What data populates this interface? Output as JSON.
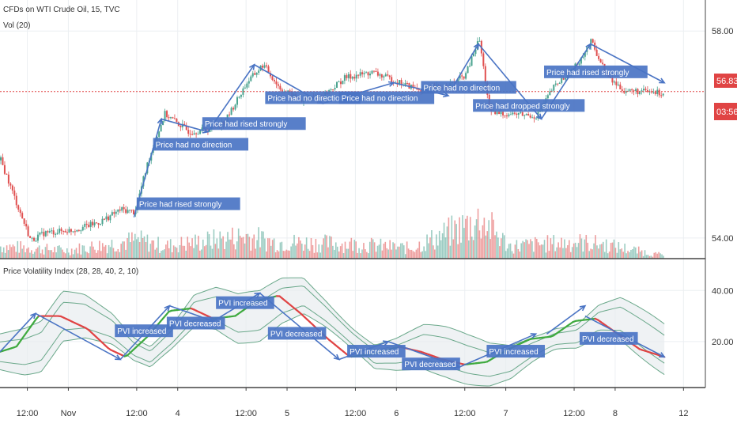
{
  "header": {
    "symbol_line": "CFDs on WTI Crude Oil, 15, TVC",
    "volume_label": "Vol (20)",
    "indicator_label": "Price Volatility Index (28, 28, 40, 2, 10)"
  },
  "price_tags": {
    "last_price": "56.83",
    "countdown": "03:56",
    "last_price_value": 56.83
  },
  "colors": {
    "up": "#4aa38f",
    "down": "#e05050",
    "note_bg": "#4a74c4",
    "arrow": "#4a74c4",
    "band": "#6aa88a",
    "pvi_up": "#3faa3f",
    "pvi_down": "#e04444",
    "price_line": "#e04444"
  },
  "chart_data": [
    {
      "type": "line",
      "panel": "price",
      "y_ticks": [
        {
          "value": 58.0,
          "label": "58.00"
        },
        {
          "value": 54.0,
          "label": "54.00"
        }
      ],
      "ylim": [
        53.6,
        58.6
      ],
      "x_ticks": [
        "12:00",
        "Nov",
        "12:00",
        "4",
        "12:00",
        "5",
        "12:00",
        "6",
        "12:00",
        "7",
        "12:00",
        "8",
        "12"
      ],
      "x_positions": [
        0.5,
        1.25,
        2.5,
        3.25,
        4.5,
        5.25,
        6.5,
        7.25,
        8.5,
        9.25,
        10.5,
        11.25,
        12.5
      ],
      "xlim": [
        0,
        12.9
      ],
      "x_end": 12.15,
      "waypoints": [
        [
          0,
          55.5
        ],
        [
          0.35,
          54.5
        ],
        [
          0.55,
          53.95
        ],
        [
          0.8,
          54.1
        ],
        [
          1.3,
          54.15
        ],
        [
          1.8,
          54.3
        ],
        [
          2.2,
          54.55
        ],
        [
          2.45,
          54.5
        ],
        [
          2.7,
          55.5
        ],
        [
          3.0,
          56.4
        ],
        [
          3.45,
          56.05
        ],
        [
          3.8,
          56.1
        ],
        [
          4.1,
          56.25
        ],
        [
          4.5,
          57.0
        ],
        [
          4.8,
          57.35
        ],
        [
          5.1,
          56.9
        ],
        [
          5.5,
          56.65
        ],
        [
          5.9,
          56.75
        ],
        [
          6.3,
          57.1
        ],
        [
          6.8,
          57.2
        ],
        [
          7.3,
          57.0
        ],
        [
          7.7,
          56.85
        ],
        [
          8.2,
          56.95
        ],
        [
          8.5,
          57.15
        ],
        [
          8.75,
          57.85
        ],
        [
          8.95,
          56.4
        ],
        [
          9.4,
          56.4
        ],
        [
          9.8,
          56.35
        ],
        [
          10.1,
          56.9
        ],
        [
          10.5,
          57.3
        ],
        [
          10.8,
          57.8
        ],
        [
          11.1,
          57.1
        ],
        [
          11.4,
          56.85
        ],
        [
          12.15,
          56.8
        ]
      ],
      "annotations": [
        {
          "text": "Price had rised strongly",
          "x": 2.5,
          "y": 54.6
        },
        {
          "text": "Price had no direction",
          "x": 2.8,
          "y": 55.75
        },
        {
          "text": "Price had rised strongly",
          "x": 3.7,
          "y": 56.15
        },
        {
          "text": "Price had no direction",
          "x": 4.85,
          "y": 56.65
        },
        {
          "text": "Price had no direction",
          "x": 6.2,
          "y": 56.65
        },
        {
          "text": "Price had no direction",
          "x": 7.7,
          "y": 56.85
        },
        {
          "text": "Price had dropped strongly",
          "x": 8.65,
          "y": 56.5
        },
        {
          "text": "Price had rised strongly",
          "x": 9.95,
          "y": 57.15
        }
      ],
      "arrows": [
        [
          [
            2.45,
            54.4
          ],
          [
            2.95,
            56.3
          ]
        ],
        [
          [
            2.95,
            56.3
          ],
          [
            3.8,
            56.05
          ]
        ],
        [
          [
            3.8,
            56.05
          ],
          [
            4.65,
            57.35
          ]
        ],
        [
          [
            4.65,
            57.35
          ],
          [
            5.9,
            56.6
          ]
        ],
        [
          [
            5.9,
            56.6
          ],
          [
            7.2,
            57.0
          ]
        ],
        [
          [
            7.2,
            57.0
          ],
          [
            8.2,
            56.75
          ]
        ],
        [
          [
            8.3,
            56.95
          ],
          [
            8.75,
            57.75
          ]
        ],
        [
          [
            8.75,
            57.75
          ],
          [
            9.9,
            56.3
          ]
        ],
        [
          [
            9.9,
            56.3
          ],
          [
            10.8,
            57.75
          ]
        ],
        [
          [
            10.8,
            57.75
          ],
          [
            12.15,
            57.0
          ]
        ]
      ]
    },
    {
      "type": "bar",
      "panel": "volume",
      "ylim": [
        0,
        100
      ],
      "peaks": [
        [
          0,
          30
        ],
        [
          1.2,
          20
        ],
        [
          2.5,
          45
        ],
        [
          3.0,
          30
        ],
        [
          4.5,
          55
        ],
        [
          5.0,
          40
        ],
        [
          6.5,
          35
        ],
        [
          7.5,
          25
        ],
        [
          8.8,
          95
        ],
        [
          9.3,
          30
        ],
        [
          10.5,
          40
        ],
        [
          11.0,
          35
        ],
        [
          12.0,
          10
        ]
      ]
    },
    {
      "type": "line",
      "panel": "pvi",
      "y_ticks": [
        {
          "value": 40.0,
          "label": "40.00"
        },
        {
          "value": 20.0,
          "label": "20.00"
        }
      ],
      "ylim": [
        2,
        50
      ],
      "pvi_waypoints": [
        [
          0,
          16
        ],
        [
          0.3,
          18
        ],
        [
          0.7,
          30
        ],
        [
          1.1,
          30
        ],
        [
          1.6,
          25
        ],
        [
          2.0,
          17
        ],
        [
          2.3,
          14
        ],
        [
          2.7,
          22
        ],
        [
          3.1,
          32
        ],
        [
          3.5,
          33
        ],
        [
          3.9,
          29
        ],
        [
          4.3,
          30
        ],
        [
          4.7,
          36
        ],
        [
          5.1,
          38
        ],
        [
          5.5,
          31
        ],
        [
          6.0,
          21
        ],
        [
          6.4,
          14
        ],
        [
          6.8,
          15
        ],
        [
          7.3,
          18
        ],
        [
          7.7,
          16
        ],
        [
          8.1,
          13
        ],
        [
          8.5,
          11
        ],
        [
          8.9,
          12
        ],
        [
          9.3,
          17
        ],
        [
          9.7,
          21
        ],
        [
          10.1,
          22
        ],
        [
          10.5,
          28
        ],
        [
          10.9,
          29
        ],
        [
          11.3,
          23
        ],
        [
          11.7,
          17
        ],
        [
          12.15,
          14
        ]
      ],
      "annotations": [
        {
          "text": "PVI increased",
          "x": 2.1,
          "y": 23
        },
        {
          "text": "PVI decreased",
          "x": 3.05,
          "y": 26
        },
        {
          "text": "PVI increased",
          "x": 3.95,
          "y": 34
        },
        {
          "text": "PVI decreased",
          "x": 4.9,
          "y": 22
        },
        {
          "text": "PVI increased",
          "x": 6.35,
          "y": 15
        },
        {
          "text": "PVI decreased",
          "x": 7.35,
          "y": 10
        },
        {
          "text": "PVI increased",
          "x": 8.9,
          "y": 15
        },
        {
          "text": "PVI decreased",
          "x": 10.6,
          "y": 20
        }
      ],
      "arrows": [
        [
          [
            0,
            16
          ],
          [
            0.65,
            31
          ]
        ],
        [
          [
            0.65,
            31
          ],
          [
            2.2,
            13
          ]
        ],
        [
          [
            2.2,
            13
          ],
          [
            3.1,
            34
          ]
        ],
        [
          [
            3.1,
            34
          ],
          [
            3.9,
            28
          ]
        ],
        [
          [
            3.9,
            28
          ],
          [
            4.75,
            39
          ]
        ],
        [
          [
            4.75,
            39
          ],
          [
            6.2,
            13
          ]
        ],
        [
          [
            6.2,
            13
          ],
          [
            7.1,
            20
          ]
        ],
        [
          [
            7.1,
            20
          ],
          [
            8.4,
            10
          ]
        ],
        [
          [
            8.4,
            10
          ],
          [
            9.8,
            23
          ]
        ],
        [
          [
            10.0,
            23
          ],
          [
            10.7,
            34
          ]
        ],
        [
          [
            10.7,
            30
          ],
          [
            12.15,
            14
          ]
        ]
      ]
    }
  ]
}
